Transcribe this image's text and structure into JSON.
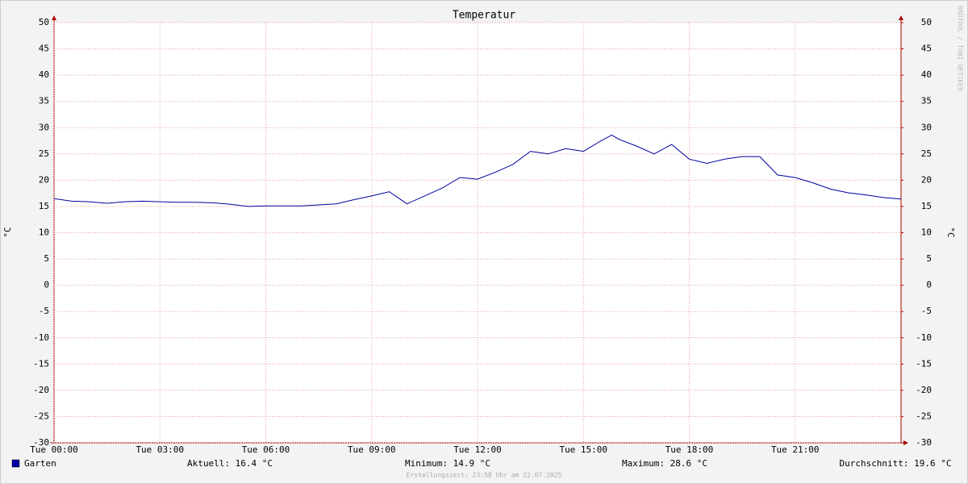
{
  "chart_data": {
    "type": "line",
    "title": "Temperatur",
    "ylabel": "°C",
    "y2label": "°C",
    "watermark": "RRDTOOL / TOBI OETIKER",
    "x": [
      0,
      0.5,
      1,
      1.5,
      2,
      2.5,
      3,
      3.5,
      4,
      4.5,
      5,
      5.5,
      6,
      6.5,
      7,
      7.5,
      8,
      8.5,
      9,
      9.5,
      10,
      10.5,
      11,
      11.5,
      12,
      12.5,
      13,
      13.5,
      14,
      14.5,
      15,
      15.5,
      15.8,
      16,
      16.5,
      17,
      17.5,
      18,
      18.5,
      19,
      19.5,
      20,
      20.5,
      21,
      21.5,
      22,
      22.5,
      23,
      23.5,
      24
    ],
    "series": [
      {
        "name": "Garten",
        "color": "#0000a0",
        "values": [
          16.5,
          16.0,
          15.9,
          15.6,
          15.9,
          16.0,
          15.9,
          15.8,
          15.8,
          15.7,
          15.4,
          15.0,
          15.1,
          15.1,
          15.1,
          15.3,
          15.5,
          16.3,
          17.0,
          17.8,
          15.5,
          17.0,
          18.5,
          20.5,
          20.2,
          21.5,
          23.0,
          25.5,
          25.0,
          26.0,
          25.5,
          27.5,
          28.6,
          27.8,
          26.5,
          25.0,
          26.8,
          24.0,
          23.2,
          24.0,
          24.5,
          24.5,
          21.0,
          20.5,
          19.5,
          18.3,
          17.6,
          17.2,
          16.7,
          16.4
        ]
      }
    ],
    "xlim": [
      0,
      24
    ],
    "xticks": [
      {
        "value": 0,
        "label": "Tue 00:00"
      },
      {
        "value": 3,
        "label": "Tue 03:00"
      },
      {
        "value": 6,
        "label": "Tue 06:00"
      },
      {
        "value": 9,
        "label": "Tue 09:00"
      },
      {
        "value": 12,
        "label": "Tue 12:00"
      },
      {
        "value": 15,
        "label": "Tue 15:00"
      },
      {
        "value": 18,
        "label": "Tue 18:00"
      },
      {
        "value": 21,
        "label": "Tue 21:00"
      }
    ],
    "ylim": [
      -30,
      50
    ],
    "yticks": [
      -30,
      -25,
      -20,
      -15,
      -10,
      -5,
      0,
      5,
      10,
      15,
      20,
      25,
      30,
      35,
      40,
      45,
      50
    ],
    "y2lim": [
      -30,
      50
    ],
    "y2ticks": [
      -30,
      -25,
      -20,
      -15,
      -10,
      -5,
      0,
      5,
      10,
      15,
      20,
      25,
      30,
      35,
      40,
      45,
      50
    ],
    "grid": true,
    "stats": [
      "Aktuell: 16.4 °C",
      "Minimum: 14.9 °C",
      "Maximum: 28.6 °C",
      "Durchschnitt: 19.6 °C"
    ],
    "footer": "Erstellungszeit: 23:58 Uhr am 22.07.2025"
  }
}
